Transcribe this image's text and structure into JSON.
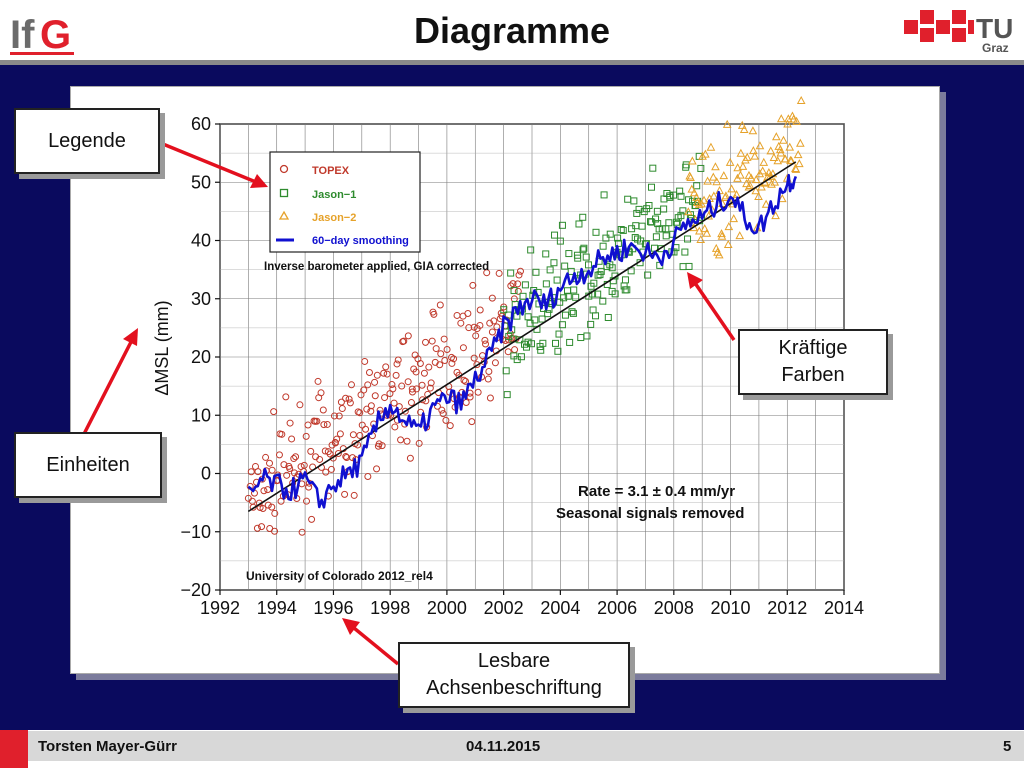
{
  "slide": {
    "title": "Diagramme",
    "author": "Torsten Mayer-Gürr",
    "date": "04.11.2015",
    "page": "5",
    "logo_left": "IfG",
    "logo_right_line1": "TU",
    "logo_right_line2": "Graz"
  },
  "colors": {
    "background": "#0a0a5e",
    "arrow": "#e3101e",
    "topex": "#c0392b",
    "jason1": "#2e8b2e",
    "jason2": "#e6a22a",
    "smoothing": "#1010d0",
    "accent_red": "#e0202c"
  },
  "callouts": {
    "legende": "Legende",
    "einheiten": "Einheiten",
    "kraeftige_line1": "Kräftige",
    "kraeftige_line2": "Farben",
    "lesbare_line1": "Lesbare",
    "lesbare_line2": "Achsenbeschriftung"
  },
  "chart_data": {
    "type": "scatter",
    "ylabel": "ΔMSL  (mm)",
    "xlim": [
      1992,
      2014
    ],
    "ylim": [
      -20,
      60
    ],
    "xticks": [
      "1992",
      "1994",
      "1996",
      "1998",
      "2000",
      "2002",
      "2004",
      "2006",
      "2008",
      "2010",
      "2012",
      "2014"
    ],
    "yticks": [
      "−20",
      "−10",
      "0",
      "10",
      "20",
      "30",
      "40",
      "50",
      "60"
    ],
    "grid": true,
    "legend_position": "top-left",
    "legend": [
      "TOPEX",
      "Jason−1",
      "Jason−2",
      "60−day smoothing"
    ],
    "annotations": {
      "correction": "Inverse barometer applied, GIA corrected",
      "rate": "Rate = 3.1 ± 0.4 mm/yr",
      "seasonal": "Seasonal signals removed",
      "source": "University of Colorado 2012_rel4"
    },
    "series": [
      {
        "name": "TOPEX",
        "marker": "circle",
        "x_range": [
          1993.0,
          2002.6
        ],
        "trend_start": -3.5,
        "rate": 3.1,
        "scatter": 6
      },
      {
        "name": "Jason−1",
        "marker": "square",
        "x_range": [
          2002.0,
          2009.0
        ],
        "trend_start": -3.5,
        "rate": 3.1,
        "scatter": 6
      },
      {
        "name": "Jason−2",
        "marker": "triangle",
        "x_range": [
          2008.5,
          2012.5
        ],
        "trend_start": -3.5,
        "rate": 3.1,
        "scatter": 6
      },
      {
        "name": "60−day smoothing",
        "marker": "line",
        "x": [
          1993.0,
          1993.5,
          1994.0,
          1994.5,
          1995.0,
          1995.5,
          1996.0,
          1996.5,
          1997.0,
          1997.5,
          1998.0,
          1998.5,
          1999.0,
          1999.5,
          2000.0,
          2000.5,
          2001.0,
          2001.5,
          2002.0,
          2002.5,
          2003.0,
          2003.5,
          2004.0,
          2004.5,
          2005.0,
          2005.5,
          2006.0,
          2006.5,
          2007.0,
          2007.5,
          2008.0,
          2008.5,
          2009.0,
          2009.5,
          2010.0,
          2010.5,
          2011.0,
          2011.5,
          2012.0,
          2012.3
        ],
        "y": [
          -4,
          -1,
          -2,
          -3,
          -1,
          -5,
          -2,
          0,
          2,
          8,
          12,
          9,
          7,
          11,
          13,
          12,
          16,
          20,
          25,
          28,
          30,
          29,
          32,
          34,
          35,
          37,
          38,
          39,
          38,
          37,
          40,
          43,
          44,
          46,
          48,
          44,
          42,
          46,
          50,
          51
        ]
      }
    ],
    "trend": {
      "x": [
        1993.0,
        2012.3
      ],
      "y": [
        -6.5,
        53.5
      ]
    }
  }
}
